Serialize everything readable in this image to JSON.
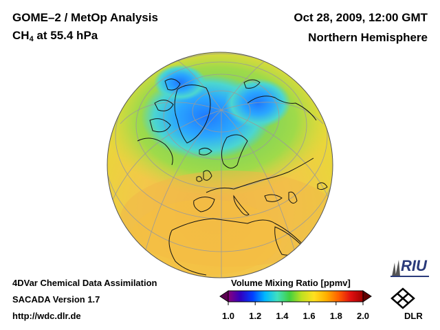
{
  "header": {
    "title": "GOME–2 / MetOp Analysis",
    "subtitle_main": "CH",
    "subtitle_sub": "4",
    "subtitle_rest": " at 55.4 hPa",
    "datetime": "Oct 28, 2009, 12:00 GMT",
    "region": "Northern Hemisphere"
  },
  "footer": {
    "line1": "4DVar Chemical Data Assimilation",
    "line2": "SACADA Version 1.7",
    "line3": "http://wdc.dlr.de"
  },
  "colorbar": {
    "title": "Volume Mixing Ratio [ppmv]",
    "ticks": [
      "1.0",
      "1.2",
      "1.4",
      "1.6",
      "1.8",
      "2.0"
    ],
    "colors": [
      "#8a007a",
      "#3000c0",
      "#0040ff",
      "#00b8ff",
      "#40e0c0",
      "#40d040",
      "#c0e020",
      "#ffe020",
      "#ffb000",
      "#ff6000",
      "#e01010",
      "#a00000"
    ]
  },
  "logos": {
    "riu": "RIU",
    "dlr": "DLR"
  }
}
